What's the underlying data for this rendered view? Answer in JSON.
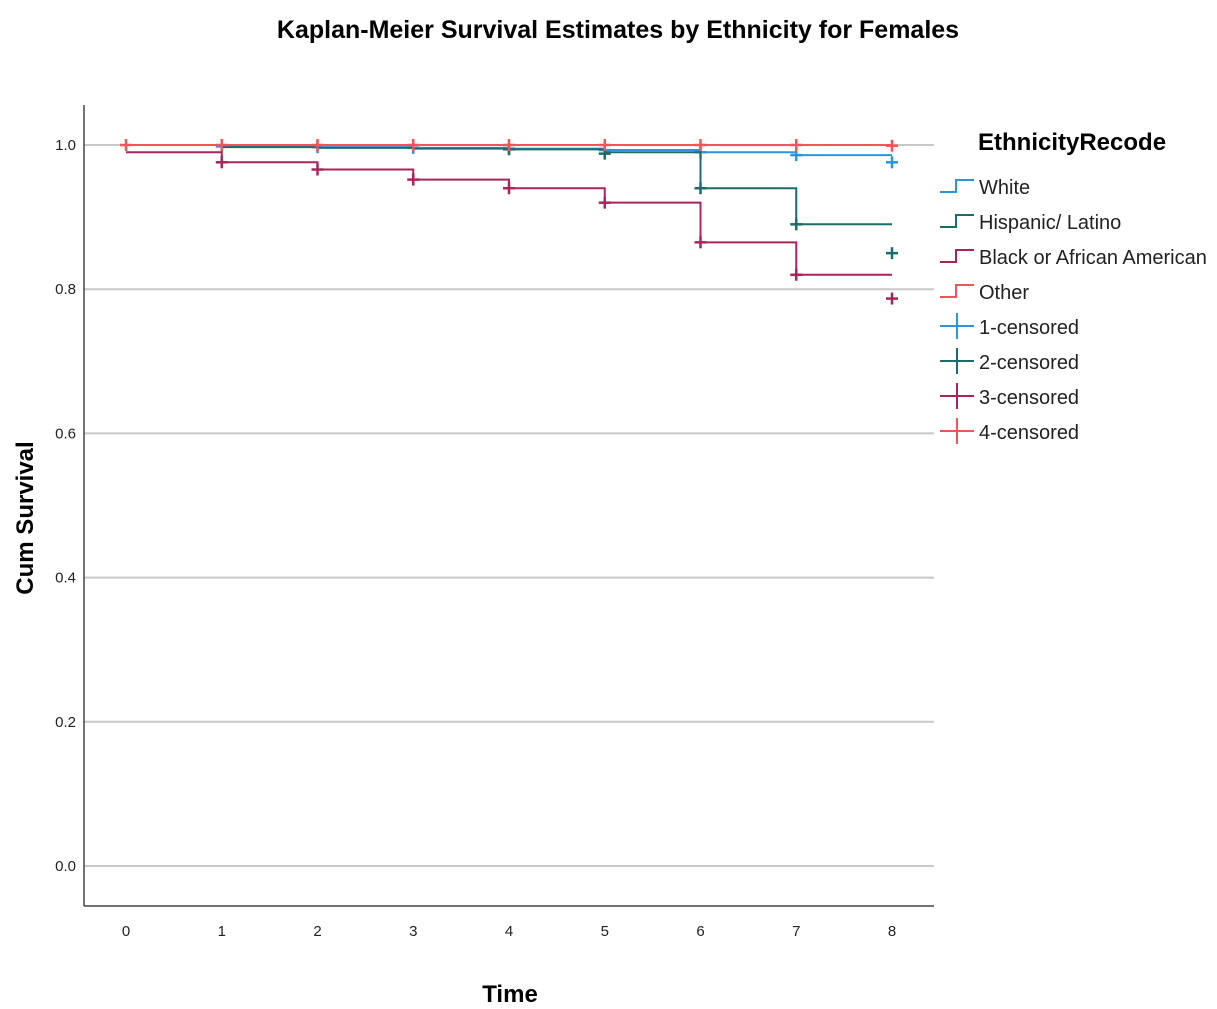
{
  "chart_data": {
    "type": "line",
    "title": "Kaplan-Meier Survival Estimates by Ethnicity for Females",
    "xlabel": "Time",
    "ylabel": "Cum Survival",
    "xlim": [
      0,
      8
    ],
    "ylim": [
      0.0,
      1.0
    ],
    "x_ticks": [
      "0",
      "1",
      "2",
      "3",
      "4",
      "5",
      "6",
      "7",
      "8"
    ],
    "y_ticks": [
      "0.0",
      "0.2",
      "0.4",
      "0.6",
      "0.8",
      "1.0"
    ],
    "grid": "horizontal",
    "legend_position": "right",
    "legend_title": "EthnicityRecode",
    "series": [
      {
        "name": "White",
        "color": "#2b95e0",
        "steps": [
          [
            0,
            1.0
          ],
          [
            1,
            0.998
          ],
          [
            2,
            0.997
          ],
          [
            3,
            0.996
          ],
          [
            4,
            0.995
          ],
          [
            5,
            0.993
          ],
          [
            6,
            0.99
          ],
          [
            7,
            0.986
          ],
          [
            8,
            0.986
          ]
        ],
        "censored": [
          [
            1,
            0.998
          ],
          [
            2,
            0.997
          ],
          [
            3,
            0.996
          ],
          [
            4,
            0.995
          ],
          [
            5,
            0.993
          ],
          [
            6,
            0.99
          ],
          [
            7,
            0.986
          ],
          [
            8,
            0.976
          ]
        ]
      },
      {
        "name": "Hispanic/ Latino",
        "color": "#1e6b6b",
        "steps": [
          [
            0,
            1.0
          ],
          [
            1,
            0.997
          ],
          [
            2,
            0.996
          ],
          [
            3,
            0.995
          ],
          [
            4,
            0.994
          ],
          [
            5,
            0.99
          ],
          [
            6,
            0.94
          ],
          [
            7,
            0.89
          ],
          [
            8,
            0.89
          ]
        ],
        "censored": [
          [
            4,
            0.994
          ],
          [
            5,
            0.988
          ],
          [
            6,
            0.94
          ],
          [
            7,
            0.89
          ],
          [
            8,
            0.85
          ]
        ]
      },
      {
        "name": "Black or African American",
        "color": "#a8245c",
        "steps": [
          [
            0,
            0.99
          ],
          [
            1,
            0.976
          ],
          [
            2,
            0.966
          ],
          [
            3,
            0.952
          ],
          [
            4,
            0.94
          ],
          [
            5,
            0.92
          ],
          [
            6,
            0.865
          ],
          [
            7,
            0.82
          ],
          [
            8,
            0.82
          ]
        ],
        "censored": [
          [
            1,
            0.976
          ],
          [
            2,
            0.966
          ],
          [
            3,
            0.952
          ],
          [
            4,
            0.94
          ],
          [
            5,
            0.92
          ],
          [
            6,
            0.865
          ],
          [
            7,
            0.82
          ],
          [
            8,
            0.787
          ]
        ]
      },
      {
        "name": "Other",
        "color": "#f0555a",
        "steps": [
          [
            0,
            1.0
          ],
          [
            8,
            1.0
          ]
        ],
        "censored": [
          [
            0,
            1.0
          ],
          [
            1,
            1.0
          ],
          [
            2,
            1.0
          ],
          [
            3,
            1.0
          ],
          [
            4,
            1.0
          ],
          [
            5,
            1.0
          ],
          [
            6,
            1.0
          ],
          [
            7,
            1.0
          ],
          [
            8,
            0.999
          ]
        ]
      }
    ],
    "legend": [
      {
        "label": "White",
        "kind": "step",
        "color": "#2b95e0"
      },
      {
        "label": "Hispanic/ Latino",
        "kind": "step",
        "color": "#1e6b6b"
      },
      {
        "label": "Black or African American",
        "kind": "step",
        "color": "#a8245c"
      },
      {
        "label": "Other",
        "kind": "step",
        "color": "#f0555a"
      },
      {
        "label": "1-censored",
        "kind": "cross",
        "color": "#2b95e0"
      },
      {
        "label": "2-censored",
        "kind": "cross",
        "color": "#1e6b6b"
      },
      {
        "label": "3-censored",
        "kind": "cross",
        "color": "#a8245c"
      },
      {
        "label": "4-censored",
        "kind": "cross",
        "color": "#f0555a"
      }
    ]
  }
}
